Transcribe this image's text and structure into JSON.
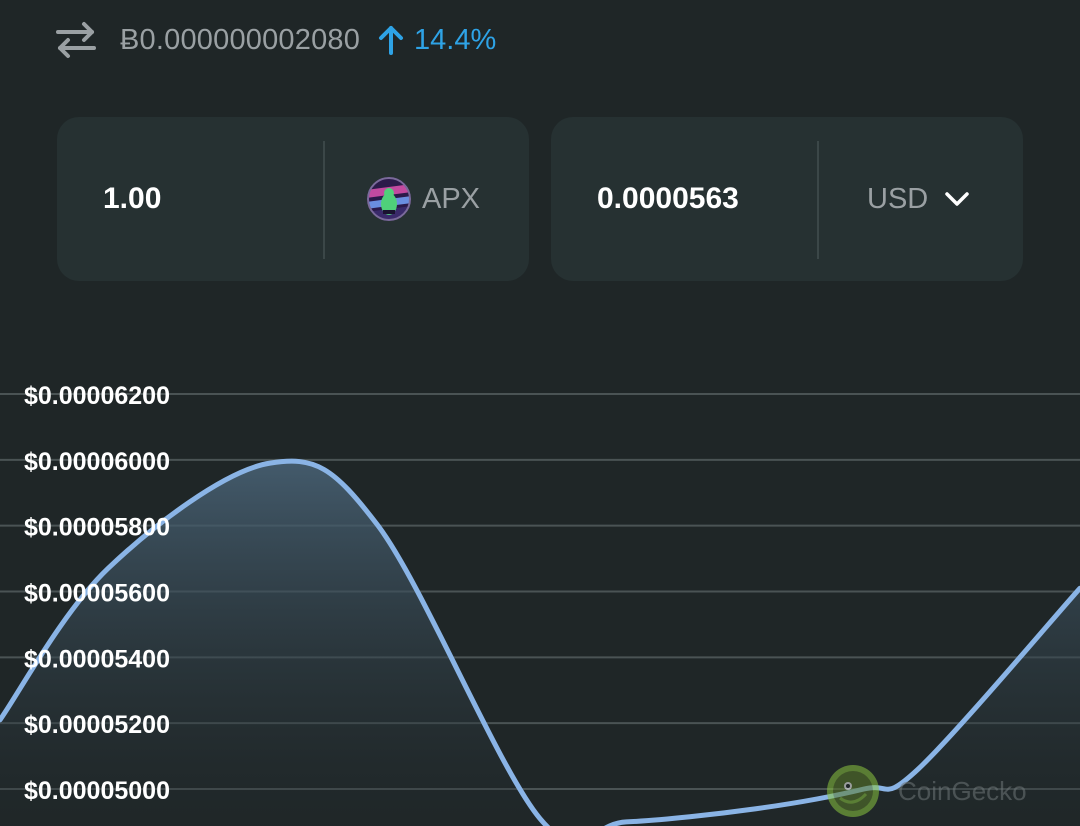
{
  "header": {
    "swap_icon": "swap-arrows-icon",
    "btc_price": "Ƀ0.000000002080",
    "change_icon": "arrow-up-icon",
    "change_percent": "14.4%",
    "change_color": "#2ea3e6"
  },
  "converter": {
    "from": {
      "amount": "1.00",
      "currency": "APX",
      "logo_icon": "apx-coin-logo"
    },
    "to": {
      "amount": "0.0000563",
      "currency": "USD",
      "dropdown_icon": "chevron-down-icon"
    }
  },
  "chart_data": {
    "type": "area",
    "title": "",
    "xlabel": "",
    "ylabel": "",
    "ylim": [
      4.9e-05,
      6.22e-05
    ],
    "yticks": [
      6.2e-05,
      6e-05,
      5.8e-05,
      5.6e-05,
      5.4e-05,
      5.2e-05,
      5e-05
    ],
    "ytick_labels": [
      "$0.00006200",
      "$0.00006000",
      "$0.00005800",
      "$0.00005600",
      "$0.00005400",
      "$0.00005200",
      "$0.00005000"
    ],
    "grid": true,
    "line_color": "#8ab4e6",
    "x": [
      0,
      0.1,
      0.25,
      0.35,
      0.5,
      0.58,
      0.7,
      0.8,
      0.85,
      1.0
    ],
    "values": [
      5.21e-05,
      5.67e-05,
      5.99e-05,
      5.8e-05,
      4.91e-05,
      4.9e-05,
      4.94e-05,
      5e-05,
      5.06e-05,
      5.61e-05
    ]
  },
  "watermark": {
    "icon": "coingecko-logo-icon",
    "text": "CoinGecko"
  }
}
